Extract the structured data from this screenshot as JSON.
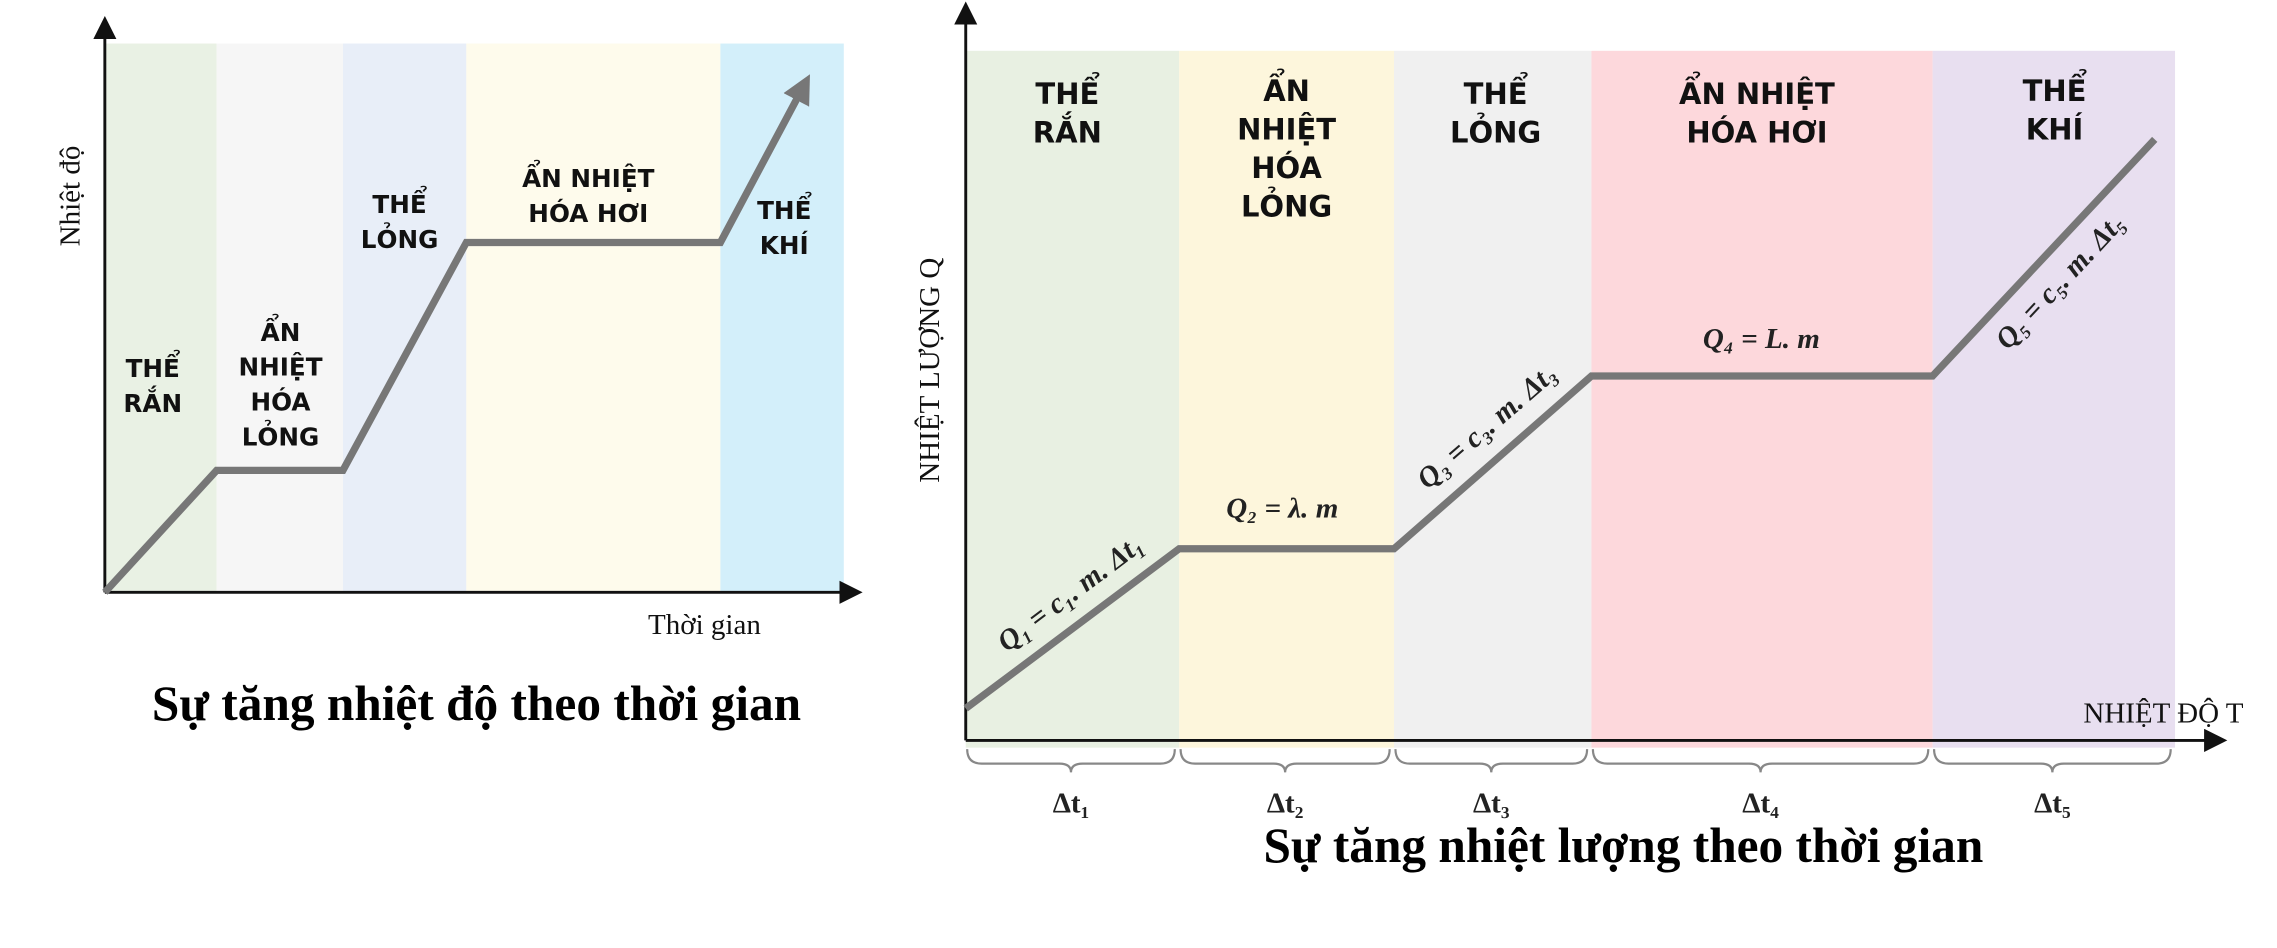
{
  "left": {
    "y_label": "Nhiệt độ",
    "x_label": "Thời gian",
    "caption": "Sự tăng nhiệt độ theo thời gian",
    "regions": [
      {
        "label": [
          "THỂ",
          "RẮN"
        ]
      },
      {
        "label": [
          "ẨN",
          "NHIỆT",
          "HÓA",
          "LỎNG"
        ]
      },
      {
        "label": [
          "THỂ",
          "LỎNG"
        ]
      },
      {
        "label": [
          "ẨN NHIỆT",
          "HÓA HƠI"
        ]
      },
      {
        "label": [
          "THỂ",
          "KHÍ"
        ]
      }
    ]
  },
  "right": {
    "y_label": "NHIỆT LƯỢNG Q",
    "x_label": "NHIỆT ĐỘ T",
    "caption": "Sự tăng nhiệt lượng theo thời gian",
    "regions": [
      {
        "label": [
          "THỂ",
          "RẮN"
        ],
        "formula": "Q₁ = c₁. m. Δt₁",
        "interval": "Δt₁"
      },
      {
        "label": [
          "ẨN",
          "NHIỆT",
          "HÓA",
          "LỎNG"
        ],
        "formula": "Q₂ = λ. m",
        "interval": "Δt₂"
      },
      {
        "label": [
          "THỂ",
          "LỎNG"
        ],
        "formula": "Q₃ = c₃. m. Δt₃",
        "interval": "Δt₃"
      },
      {
        "label": [
          "ẨN NHIỆT",
          "HÓA HƠI"
        ],
        "formula": "Q₄ = L. m",
        "interval": "Δt₄"
      },
      {
        "label": [
          "THỂ",
          "KHÍ"
        ],
        "formula": "Q₅ = c₅. m. Δt₅",
        "interval": "Δt₅"
      }
    ]
  }
}
